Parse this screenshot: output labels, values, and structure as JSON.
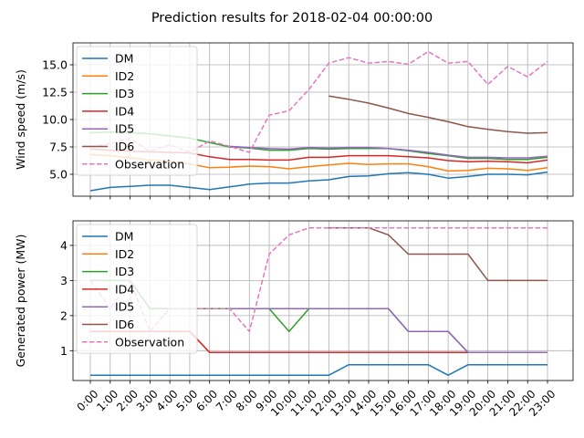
{
  "suptitle": "Prediction results for 2018-02-04 00:00:00",
  "colors": {
    "DM": "#1f77b4",
    "ID2": "#ff7f0e",
    "ID3": "#2ca02c",
    "ID4": "#d62728",
    "ID5": "#9467bd",
    "ID6": "#8c564b",
    "Observation": "#e377c2"
  },
  "chart_data": [
    {
      "type": "line",
      "title": "",
      "xlabel": "",
      "ylabel": "Wind speed (m/s)",
      "ylim": [
        3.0,
        17.0
      ],
      "yticks": [
        5.0,
        7.5,
        10.0,
        12.5,
        15.0
      ],
      "ytick_labels": [
        "5.0",
        "7.5",
        "10.0",
        "12.5",
        "15.0"
      ],
      "x": [
        "0:00",
        "1:00",
        "2:00",
        "3:00",
        "4:00",
        "5:00",
        "6:00",
        "7:00",
        "8:00",
        "9:00",
        "10:00",
        "11:00",
        "12:00",
        "13:00",
        "14:00",
        "15:00",
        "16:00",
        "17:00",
        "18:00",
        "19:00",
        "20:00",
        "21:00",
        "22:00",
        "23:00"
      ],
      "show_xticklabels": false,
      "grid": true,
      "legend": "upper left",
      "series": [
        {
          "name": "DM",
          "style": "solid",
          "values": [
            3.5,
            3.8,
            3.9,
            4.0,
            4.0,
            3.8,
            3.6,
            3.85,
            4.1,
            4.2,
            4.2,
            4.4,
            4.5,
            4.8,
            4.85,
            5.05,
            5.15,
            5.0,
            4.65,
            4.8,
            5.0,
            5.0,
            4.95,
            5.2
          ]
        },
        {
          "name": "ID2",
          "style": "solid",
          "values": [
            6.8,
            6.7,
            6.5,
            6.3,
            6.2,
            5.95,
            5.6,
            5.65,
            5.75,
            5.7,
            5.5,
            5.7,
            5.85,
            6.0,
            5.9,
            5.95,
            5.95,
            5.7,
            5.3,
            5.35,
            5.55,
            5.5,
            5.35,
            5.6
          ]
        },
        {
          "name": "ID3",
          "style": "solid",
          "values": [
            8.8,
            8.85,
            8.8,
            8.7,
            8.5,
            8.3,
            7.9,
            7.5,
            7.4,
            7.2,
            7.2,
            7.35,
            7.3,
            7.35,
            7.35,
            7.35,
            7.15,
            6.9,
            6.7,
            6.45,
            6.45,
            6.35,
            6.35,
            6.55
          ]
        },
        {
          "name": "ID4",
          "style": "solid",
          "values": [
            7.3,
            7.2,
            7.1,
            7.05,
            7.0,
            6.95,
            6.6,
            6.35,
            6.35,
            6.3,
            6.3,
            6.55,
            6.55,
            6.7,
            6.7,
            6.7,
            6.6,
            6.5,
            6.25,
            6.15,
            6.2,
            6.15,
            6.05,
            6.3
          ]
        },
        {
          "name": "ID5",
          "style": "solid",
          "values": [
            null,
            null,
            null,
            null,
            null,
            null,
            null,
            7.55,
            7.45,
            7.35,
            7.3,
            7.45,
            7.4,
            7.45,
            7.45,
            7.35,
            7.2,
            7.0,
            6.75,
            6.55,
            6.55,
            6.5,
            6.5,
            6.65
          ]
        },
        {
          "name": "ID6",
          "style": "solid",
          "values": [
            null,
            null,
            null,
            null,
            null,
            null,
            null,
            null,
            null,
            null,
            null,
            null,
            12.15,
            11.85,
            11.5,
            11.05,
            10.55,
            10.2,
            9.8,
            9.35,
            9.1,
            8.9,
            8.75,
            8.8
          ]
        },
        {
          "name": "Observation",
          "style": "dashed",
          "values": [
            7.5,
            7.8,
            8.3,
            7.1,
            7.7,
            7.0,
            8.05,
            7.55,
            7.0,
            10.4,
            10.8,
            12.75,
            15.15,
            15.65,
            15.15,
            15.3,
            15.05,
            16.2,
            15.15,
            15.3,
            13.2,
            14.85,
            13.9,
            15.3
          ]
        }
      ]
    },
    {
      "type": "line",
      "title": "",
      "xlabel": "",
      "ylabel": "Generated power (MW)",
      "ylim": [
        0.15,
        4.7
      ],
      "yticks": [
        1,
        2,
        3,
        4
      ],
      "ytick_labels": [
        "1",
        "2",
        "3",
        "4"
      ],
      "x": [
        "0:00",
        "1:00",
        "2:00",
        "3:00",
        "4:00",
        "5:00",
        "6:00",
        "7:00",
        "8:00",
        "9:00",
        "10:00",
        "11:00",
        "12:00",
        "13:00",
        "14:00",
        "15:00",
        "16:00",
        "17:00",
        "18:00",
        "19:00",
        "20:00",
        "21:00",
        "22:00",
        "23:00"
      ],
      "show_xticklabels": true,
      "grid": true,
      "legend": "upper left",
      "series": [
        {
          "name": "DM",
          "style": "solid",
          "values": [
            0.3,
            0.3,
            0.3,
            0.3,
            0.3,
            0.3,
            0.3,
            0.3,
            0.3,
            0.3,
            0.3,
            0.3,
            0.3,
            0.6,
            0.6,
            0.6,
            0.6,
            0.6,
            0.3,
            0.6,
            0.6,
            0.6,
            0.6,
            0.6
          ]
        },
        {
          "name": "ID2",
          "style": "solid",
          "values": [
            1.55,
            1.55,
            1.55,
            1.55,
            1.55,
            1.55,
            0.95,
            0.95,
            0.95,
            0.95,
            0.95,
            0.95,
            0.95,
            0.95,
            0.95,
            0.95,
            0.95,
            0.95,
            0.95,
            0.95,
            0.95,
            0.95,
            0.95,
            0.95
          ]
        },
        {
          "name": "ID3",
          "style": "solid",
          "values": [
            3.0,
            3.0,
            3.0,
            2.2,
            2.2,
            2.2,
            2.2,
            2.2,
            2.2,
            2.2,
            1.55,
            2.2,
            2.2,
            2.2,
            2.2,
            2.2,
            1.55,
            1.55,
            1.55,
            0.95,
            0.95,
            0.95,
            0.95,
            0.95
          ]
        },
        {
          "name": "ID4",
          "style": "solid",
          "values": [
            1.55,
            1.55,
            1.55,
            1.55,
            1.55,
            1.55,
            0.95,
            0.95,
            0.95,
            0.95,
            0.95,
            0.95,
            0.95,
            0.95,
            0.95,
            0.95,
            0.95,
            0.95,
            0.95,
            0.95,
            0.95,
            0.95,
            0.95,
            0.95
          ]
        },
        {
          "name": "ID5",
          "style": "solid",
          "values": [
            null,
            null,
            null,
            null,
            null,
            null,
            null,
            2.2,
            2.2,
            2.2,
            2.2,
            2.2,
            2.2,
            2.2,
            2.2,
            2.2,
            1.55,
            1.55,
            1.55,
            0.95,
            0.95,
            0.95,
            0.95,
            0.95
          ]
        },
        {
          "name": "ID6",
          "style": "solid",
          "values": [
            null,
            null,
            null,
            null,
            null,
            null,
            null,
            null,
            null,
            null,
            null,
            null,
            4.5,
            4.5,
            4.5,
            4.3,
            3.75,
            3.75,
            3.75,
            3.75,
            3.0,
            3.0,
            3.0,
            3.0
          ]
        },
        {
          "name": "Observation",
          "style": "dashed",
          "values": [
            3.0,
            2.2,
            3.0,
            1.55,
            2.2,
            2.2,
            2.2,
            2.2,
            1.55,
            3.75,
            4.3,
            4.5,
            4.5,
            4.5,
            4.5,
            4.5,
            4.5,
            4.5,
            4.5,
            4.5,
            4.5,
            4.5,
            4.5,
            4.5
          ]
        }
      ]
    }
  ]
}
